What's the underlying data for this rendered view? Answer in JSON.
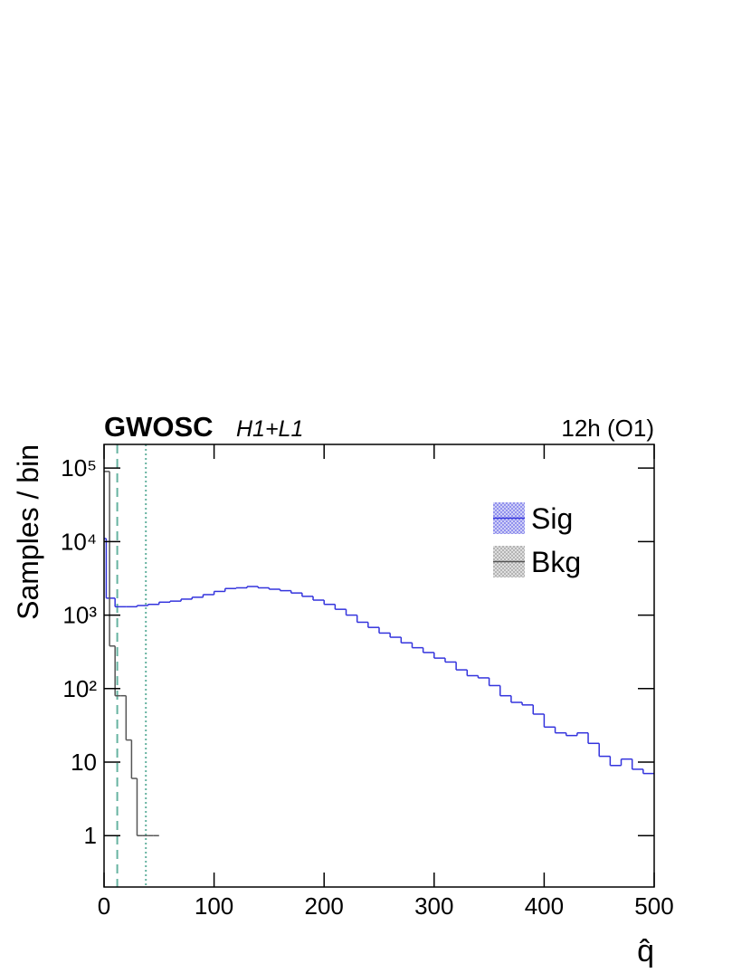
{
  "chart_data": {
    "type": "histogram",
    "title": "GWOSC",
    "subtitle": "H1+L1",
    "annotation": "12h (O1)",
    "ylabel": "Samples / bin",
    "xlabel": "q̂",
    "log_y": true,
    "legend": "upper right",
    "xlim": [
      0,
      500
    ],
    "xticks": [
      0,
      100,
      200,
      300,
      400,
      500
    ],
    "ylim": [
      0.2,
      210000
    ],
    "yticks": [
      1,
      10,
      {
        "value": 100,
        "label": "10²"
      },
      {
        "value": 1000,
        "label": "10³"
      },
      {
        "value": 10000,
        "label": "10⁴"
      },
      {
        "value": 100000,
        "label": "10⁵"
      }
    ],
    "series": [
      {
        "name": "Sig",
        "color": "#3333dd",
        "bins": [
          0,
          2,
          10,
          20,
          30,
          40,
          50,
          60,
          70,
          80,
          90,
          100,
          110,
          120,
          130,
          140,
          150,
          160,
          170,
          180,
          190,
          200,
          210,
          220,
          230,
          240,
          250,
          260,
          270,
          280,
          290,
          300,
          310,
          320,
          330,
          340,
          350,
          360,
          370,
          380,
          390,
          400,
          410,
          420,
          430,
          440,
          450,
          460,
          470,
          480,
          490,
          500
        ],
        "values": [
          11000,
          1700,
          1300,
          1300,
          1350,
          1400,
          1500,
          1550,
          1650,
          1750,
          1900,
          2100,
          2300,
          2350,
          2450,
          2350,
          2250,
          2150,
          2000,
          1800,
          1600,
          1400,
          1200,
          1000,
          800,
          680,
          570,
          500,
          420,
          360,
          310,
          260,
          230,
          180,
          150,
          140,
          110,
          80,
          65,
          60,
          45,
          30,
          25,
          23,
          25,
          18,
          12,
          9,
          11,
          8,
          7
        ]
      },
      {
        "name": "Bkg",
        "color": "#555555",
        "bins": [
          0,
          5,
          10,
          15,
          20,
          25,
          30,
          35,
          40,
          45,
          50
        ],
        "values": [
          90000,
          380,
          80,
          80,
          20,
          6,
          1,
          1,
          1,
          1
        ]
      }
    ],
    "vlines": [
      {
        "x": 12,
        "style": "dashed",
        "color": "#66b3a0"
      },
      {
        "x": 38,
        "style": "dotted",
        "color": "#66b3a0"
      }
    ]
  }
}
